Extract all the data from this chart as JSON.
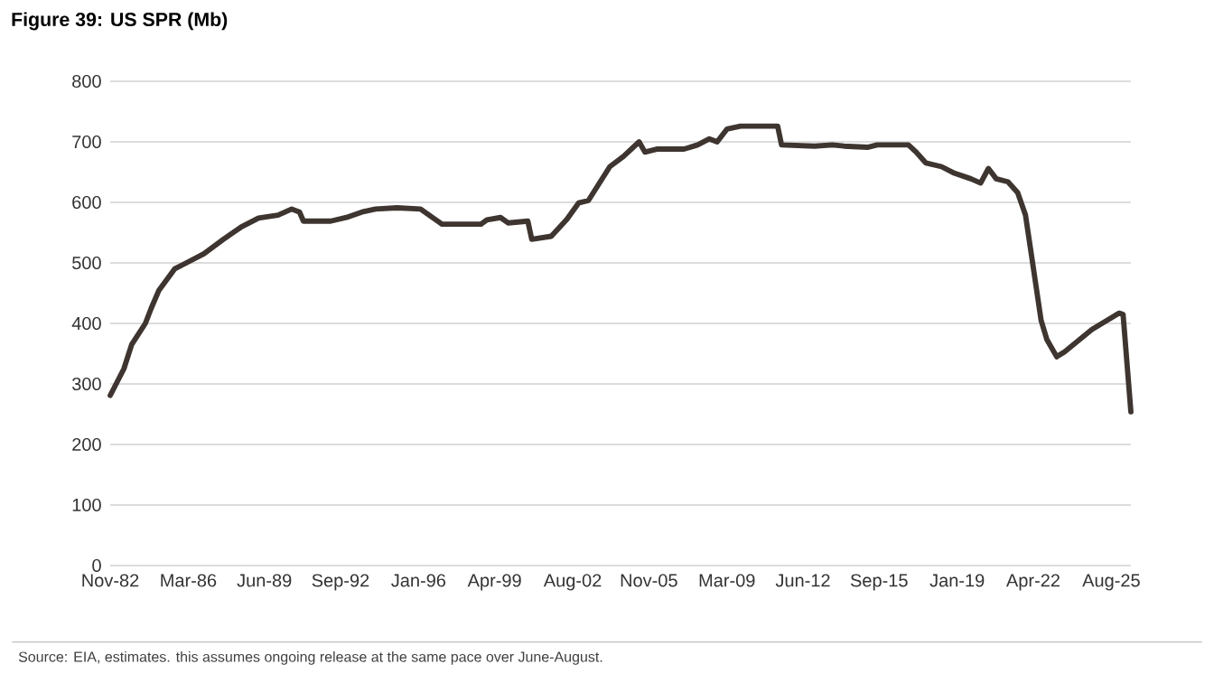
{
  "chart_data": {
    "type": "line",
    "title": "Figure 39: US SPR (Mb)",
    "annotations": [
      "Source: EIA, estimates. this assumes ongoing release at the same pace over June-August."
    ],
    "x": [
      "1982-11",
      "1983-06",
      "1983-10",
      "1984-05",
      "1984-08",
      "1984-12",
      "1985-08",
      "1986-02",
      "1986-11",
      "1987-09",
      "1988-06",
      "1989-03",
      "1990-01",
      "1990-08",
      "1990-12",
      "1991-02",
      "1992-04",
      "1993-01",
      "1993-08",
      "1994-03",
      "1995-02",
      "1996-02",
      "1997-01",
      "1998-09",
      "1998-12",
      "1999-07",
      "1999-11",
      "2000-09",
      "2000-11",
      "2001-09",
      "2002-05",
      "2002-11",
      "2003-04",
      "2004-03",
      "2004-10",
      "2005-06",
      "2005-09",
      "2006-03",
      "2007-05",
      "2007-12",
      "2008-06",
      "2008-10",
      "2009-03",
      "2009-10",
      "2011-05",
      "2011-07",
      "2012-12",
      "2013-09",
      "2014-03",
      "2015-03",
      "2015-08",
      "2016-12",
      "2017-04",
      "2017-09",
      "2018-05",
      "2018-11",
      "2019-08",
      "2020-01",
      "2020-05",
      "2020-09",
      "2021-03",
      "2021-08",
      "2021-12",
      "2022-03",
      "2022-08",
      "2022-11",
      "2023-04",
      "2023-08",
      "2024-10",
      "2025-12",
      "2026-02",
      "2026-06"
    ],
    "series": [
      {
        "color": "#3e3530",
        "values": [
          281,
          325,
          365,
          400,
          425,
          455,
          490,
          500,
          515,
          539,
          559,
          574,
          579,
          589,
          584,
          569,
          569,
          576,
          584,
          589,
          591,
          589,
          564,
          564,
          571,
          575,
          566,
          569,
          539,
          544,
          572,
          599,
          603,
          659,
          676,
          700,
          683,
          688,
          688,
          695,
          705,
          700,
          721,
          726,
          726,
          695,
          693,
          695,
          693,
          691,
          695,
          695,
          683,
          665,
          659,
          649,
          639,
          632,
          656,
          639,
          634,
          616,
          579,
          514,
          405,
          373,
          345,
          353,
          390,
          417,
          415,
          254
        ]
      }
    ],
    "xlim": [
      "1982-11",
      "2026-06"
    ],
    "xticks": [
      {
        "value": "1982-11",
        "label": "Nov-82"
      },
      {
        "value": "1986-03",
        "label": "Mar-86"
      },
      {
        "value": "1989-06",
        "label": "Jun-89"
      },
      {
        "value": "1992-09",
        "label": "Sep-92"
      },
      {
        "value": "1996-01",
        "label": "Jan-96"
      },
      {
        "value": "1999-04",
        "label": "Apr-99"
      },
      {
        "value": "2002-08",
        "label": "Aug-02"
      },
      {
        "value": "2005-11",
        "label": "Nov-05"
      },
      {
        "value": "2009-03",
        "label": "Mar-09"
      },
      {
        "value": "2012-06",
        "label": "Jun-12"
      },
      {
        "value": "2015-09",
        "label": "Sep-15"
      },
      {
        "value": "2019-01",
        "label": "Jan-19"
      },
      {
        "value": "2022-04",
        "label": "Apr-22"
      },
      {
        "value": "2025-08",
        "label": "Aug-25"
      }
    ],
    "ylim": [
      0,
      800
    ],
    "yticks": [
      0,
      100,
      200,
      300,
      400,
      500,
      600,
      700,
      800
    ],
    "grid": "y",
    "line_style": "solid"
  }
}
